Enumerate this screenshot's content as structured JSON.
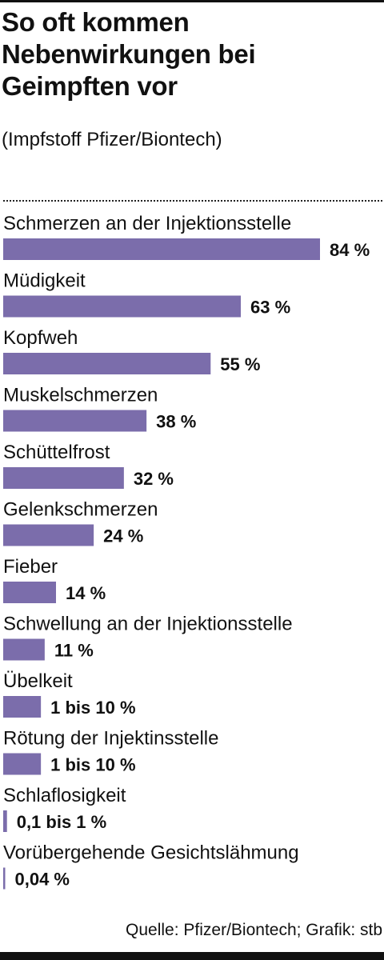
{
  "header": {
    "title": "So oft kommen Nebenwirkungen bei Geimpften vor",
    "subtitle": "(Impfstoff Pfizer/Biontech)"
  },
  "footer": {
    "source": "Quelle: Pfizer/Biontech; Grafik: stb"
  },
  "colors": {
    "bar": "#7b6dab",
    "text": "#111111"
  },
  "chart_data": {
    "type": "bar",
    "orientation": "horizontal",
    "unit": "%",
    "xlim": [
      0,
      84
    ],
    "grid": false,
    "legend": "none",
    "categories": [
      "Schmerzen an der Injektionsstelle",
      "Müdigkeit",
      "Kopfweh",
      "Muskelschmerzen",
      "Schüttelfrost",
      "Gelenkschmerzen",
      "Fieber",
      "Schwellung an der Injektionsstelle",
      "Übelkeit",
      "Rötung der Injektinsstelle",
      "Schlaflosigkeit",
      "Vorübergehende Gesichtslähmung"
    ],
    "values": [
      84,
      63,
      55,
      38,
      32,
      24,
      14,
      11,
      10,
      10,
      1,
      0.04
    ],
    "value_labels": [
      "84 %",
      "63 %",
      "55 %",
      "38 %",
      "32 %",
      "24 %",
      "14 %",
      "11 %",
      "1 bis 10 %",
      "1 bis 10 %",
      "0,1 bis 1 %",
      "0,04 %"
    ]
  }
}
